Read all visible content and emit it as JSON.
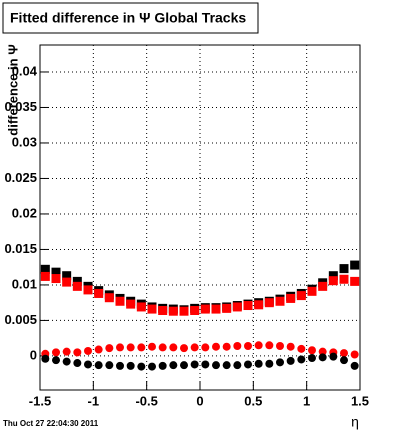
{
  "chart_data": {
    "type": "scatter",
    "title": "Fitted difference in  Ψ   Global Tracks",
    "y_label": "difference in Ψ",
    "x_label": "η",
    "timestamp": "Thu Oct 27 22:04:30 2011",
    "xlim": [
      -1.5,
      1.5
    ],
    "ylim": [
      -0.0048,
      0.0438
    ],
    "xticks": [
      -1.5,
      -1,
      -0.5,
      0,
      0.5,
      1,
      1.5
    ],
    "yticks": [
      0,
      0.005,
      0.01,
      0.015,
      0.02,
      0.025,
      0.03,
      0.035,
      0.04
    ],
    "grid": true,
    "x": [
      -1.45,
      -1.35,
      -1.25,
      -1.15,
      -1.05,
      -0.95,
      -0.85,
      -0.75,
      -0.65,
      -0.55,
      -0.45,
      -0.35,
      -0.25,
      -0.15,
      -0.05,
      0.05,
      0.15,
      0.25,
      0.35,
      0.45,
      0.55,
      0.65,
      0.75,
      0.85,
      0.95,
      1.05,
      1.15,
      1.25,
      1.35,
      1.45
    ],
    "series": [
      {
        "color": "#000000",
        "marker": "square",
        "values": [
          0.0122,
          0.0118,
          0.0113,
          0.0105,
          0.0098,
          0.0092,
          0.0086,
          0.0081,
          0.0077,
          0.0073,
          0.0069,
          0.0067,
          0.0066,
          0.0065,
          0.0067,
          0.0068,
          0.0068,
          0.0069,
          0.0071,
          0.0073,
          0.0075,
          0.0077,
          0.008,
          0.0084,
          0.0088,
          0.0094,
          0.0103,
          0.0113,
          0.0123,
          0.0128
        ]
      },
      {
        "color": "#ff0000",
        "marker": "square",
        "values": [
          0.0112,
          0.0109,
          0.0104,
          0.0098,
          0.0093,
          0.0088,
          0.0082,
          0.0077,
          0.0073,
          0.0069,
          0.0066,
          0.0064,
          0.0063,
          0.0063,
          0.0064,
          0.0066,
          0.0066,
          0.0067,
          0.0069,
          0.0071,
          0.0072,
          0.0075,
          0.0077,
          0.0081,
          0.0085,
          0.0091,
          0.0098,
          0.0106,
          0.0108,
          0.0105
        ]
      },
      {
        "color": "#ff0000",
        "marker": "circle",
        "values": [
          0.0003,
          0.0005,
          0.0006,
          0.0005,
          0.0007,
          0.0009,
          0.0011,
          0.0012,
          0.0012,
          0.0012,
          0.0013,
          0.0012,
          0.0012,
          0.0011,
          0.0012,
          0.0012,
          0.0013,
          0.0013,
          0.0014,
          0.0014,
          0.0015,
          0.0015,
          0.0014,
          0.0013,
          0.001,
          0.0008,
          0.0006,
          0.0005,
          0.0004,
          0.0002
        ]
      },
      {
        "color": "#000000",
        "marker": "circle",
        "values": [
          -0.0004,
          -0.0006,
          -0.0008,
          -0.001,
          -0.0012,
          -0.0013,
          -0.0013,
          -0.0014,
          -0.0014,
          -0.0015,
          -0.0015,
          -0.0014,
          -0.0013,
          -0.0013,
          -0.0012,
          -0.0012,
          -0.0013,
          -0.0013,
          -0.0013,
          -0.0012,
          -0.0011,
          -0.0011,
          -0.0009,
          -0.0007,
          -0.0005,
          -0.0003,
          -0.0002,
          -0.0001,
          -0.0006,
          -0.0014
        ]
      }
    ]
  }
}
